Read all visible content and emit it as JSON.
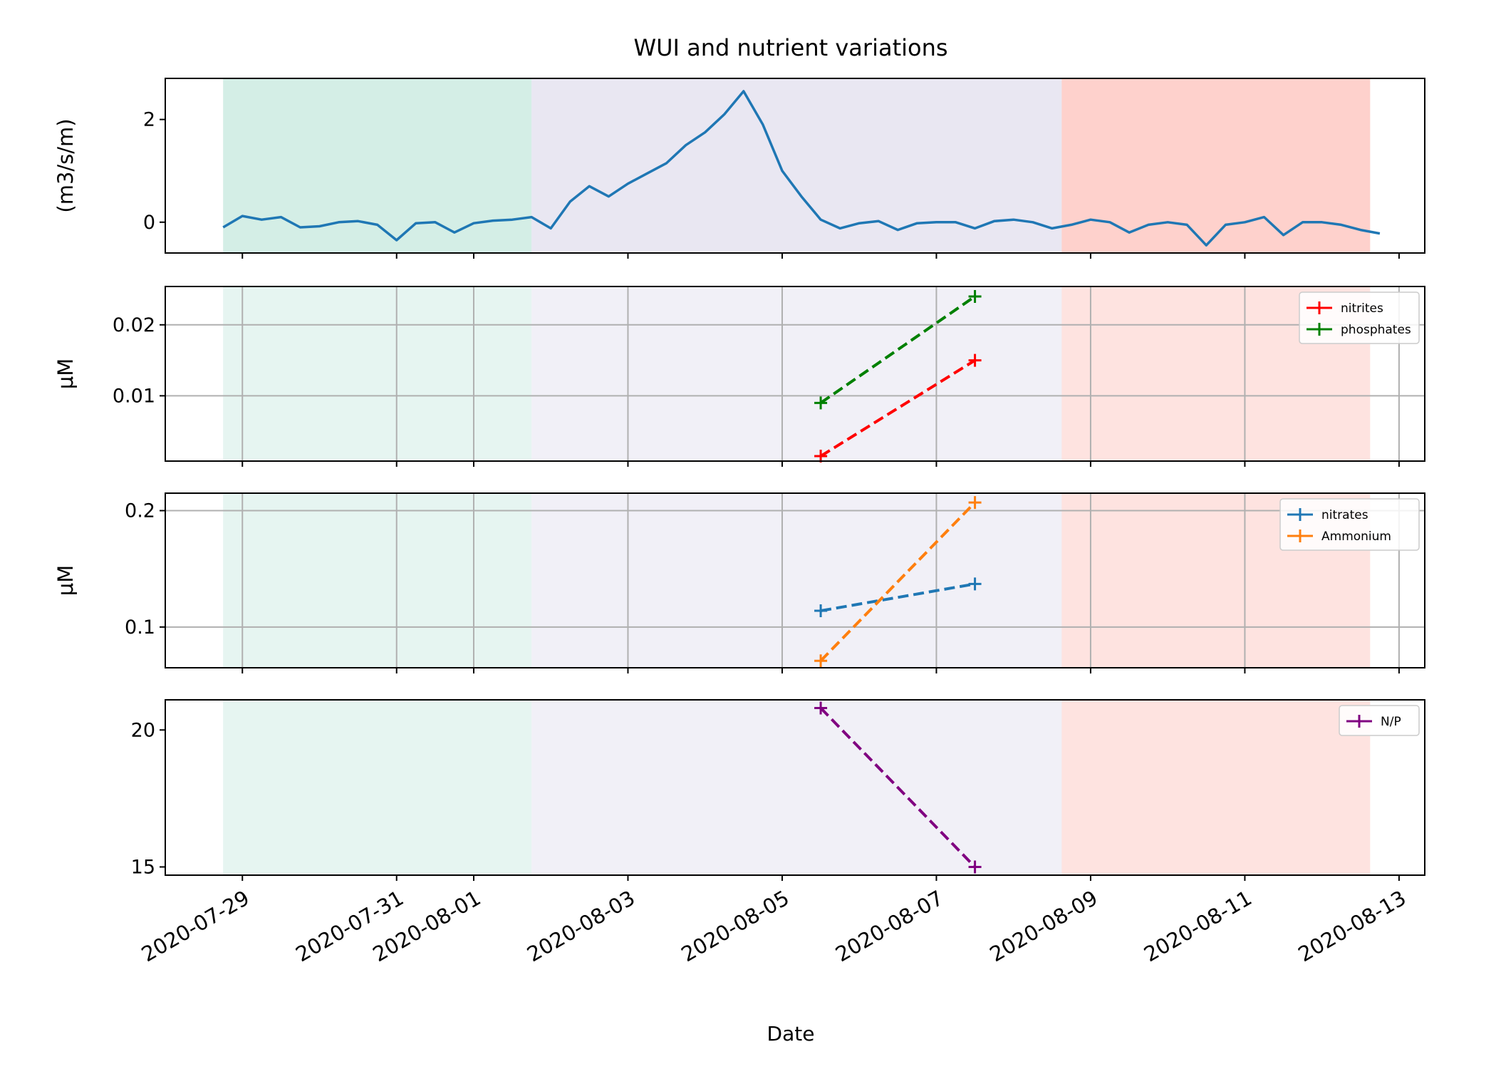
{
  "title": "WUI and nutrient variations",
  "xlabel": "Date",
  "colors": {
    "period1": "#66c2a5",
    "period2": "#bebada",
    "period3": "#fb8072",
    "wui": "#1f77b4",
    "nitrites": "#ff0000",
    "phosphates": "#008000",
    "nitrates": "#1f77b4",
    "ammonium": "#ff7f0e",
    "np": "#800080",
    "grid": "#b0b0b0"
  },
  "chart_data": [
    {
      "type": "line",
      "panel": "wui",
      "ylabel": "(m3/s/m)",
      "ylim": [
        -0.6,
        2.8
      ],
      "yticks": [
        0,
        2
      ],
      "grid": false,
      "shading": [
        {
          "start": "2020-07-28 18:00",
          "end": "2020-08-01 18:00",
          "color": "period1"
        },
        {
          "start": "2020-08-01 18:00",
          "end": "2020-08-08 15:00",
          "color": "period2"
        },
        {
          "start": "2020-08-08 15:00",
          "end": "2020-08-12 15:00",
          "color": "period3"
        }
      ],
      "series": [
        {
          "color": "wui",
          "x": [
            "2020-07-28 18:00",
            "2020-07-29 00:00",
            "2020-07-29 06:00",
            "2020-07-29 12:00",
            "2020-07-29 18:00",
            "2020-07-30 00:00",
            "2020-07-30 06:00",
            "2020-07-30 12:00",
            "2020-07-30 18:00",
            "2020-07-31 00:00",
            "2020-07-31 06:00",
            "2020-07-31 12:00",
            "2020-07-31 18:00",
            "2020-08-01 00:00",
            "2020-08-01 06:00",
            "2020-08-01 12:00",
            "2020-08-01 18:00",
            "2020-08-02 00:00",
            "2020-08-02 06:00",
            "2020-08-02 12:00",
            "2020-08-02 18:00",
            "2020-08-03 00:00",
            "2020-08-03 06:00",
            "2020-08-03 12:00",
            "2020-08-03 18:00",
            "2020-08-04 00:00",
            "2020-08-04 06:00",
            "2020-08-04 12:00",
            "2020-08-04 18:00",
            "2020-08-05 00:00",
            "2020-08-05 06:00",
            "2020-08-05 12:00",
            "2020-08-05 18:00",
            "2020-08-06 00:00",
            "2020-08-06 06:00",
            "2020-08-06 12:00",
            "2020-08-06 18:00",
            "2020-08-07 00:00",
            "2020-08-07 06:00",
            "2020-08-07 12:00",
            "2020-08-07 18:00",
            "2020-08-08 00:00",
            "2020-08-08 06:00",
            "2020-08-08 12:00",
            "2020-08-08 18:00",
            "2020-08-09 00:00",
            "2020-08-09 06:00",
            "2020-08-09 12:00",
            "2020-08-09 18:00",
            "2020-08-10 00:00",
            "2020-08-10 06:00",
            "2020-08-10 12:00",
            "2020-08-10 18:00",
            "2020-08-11 00:00",
            "2020-08-11 06:00",
            "2020-08-11 12:00",
            "2020-08-11 18:00",
            "2020-08-12 00:00",
            "2020-08-12 06:00",
            "2020-08-12 12:00",
            "2020-08-12 18:00"
          ],
          "y": [
            -0.1,
            0.12,
            0.05,
            0.1,
            -0.1,
            -0.08,
            0.0,
            0.02,
            -0.05,
            -0.35,
            -0.02,
            0.0,
            -0.2,
            -0.02,
            0.03,
            0.05,
            0.1,
            -0.12,
            0.4,
            0.7,
            0.5,
            0.75,
            0.95,
            1.15,
            1.5,
            1.75,
            2.1,
            2.55,
            1.9,
            1.0,
            0.5,
            0.05,
            -0.12,
            -0.02,
            0.02,
            -0.15,
            -0.02,
            0.0,
            0.0,
            -0.12,
            0.02,
            0.05,
            0.0,
            -0.12,
            -0.05,
            0.05,
            0.0,
            -0.2,
            -0.05,
            0.0,
            -0.05,
            -0.45,
            -0.05,
            0.0,
            0.1,
            -0.25,
            0.0,
            0.0,
            -0.05,
            -0.15,
            -0.22
          ]
        }
      ]
    },
    {
      "type": "line",
      "panel": "nitrites-phosphates",
      "ylabel": "μM",
      "ylim": [
        0.0008,
        0.0254
      ],
      "yticks": [
        0.01,
        0.02
      ],
      "ytick_labels": [
        "0.01",
        "0.02"
      ],
      "grid": true,
      "legend": "top-right",
      "series": [
        {
          "name": "nitrites",
          "color": "nitrites",
          "x": [
            "2020-08-05 12:00",
            "2020-08-07 12:00"
          ],
          "y": [
            0.0015,
            0.015
          ]
        },
        {
          "name": "phosphates",
          "color": "phosphates",
          "x": [
            "2020-08-05 12:00",
            "2020-08-07 12:00"
          ],
          "y": [
            0.009,
            0.024
          ]
        }
      ]
    },
    {
      "type": "line",
      "panel": "nitrates-ammonium",
      "ylabel": "μM",
      "ylim": [
        0.065,
        0.215
      ],
      "yticks": [
        0.1,
        0.2
      ],
      "ytick_labels": [
        "0.1",
        "0.2"
      ],
      "grid": true,
      "legend": "top-right",
      "series": [
        {
          "name": "nitrates",
          "color": "nitrates",
          "x": [
            "2020-08-05 12:00",
            "2020-08-07 12:00"
          ],
          "y": [
            0.114,
            0.137
          ]
        },
        {
          "name": "Ammonium",
          "color": "ammonium",
          "x": [
            "2020-08-05 12:00",
            "2020-08-07 12:00"
          ],
          "y": [
            0.071,
            0.207
          ]
        }
      ]
    },
    {
      "type": "line",
      "panel": "np",
      "ylabel": "",
      "ylim": [
        14.7,
        21.1
      ],
      "yticks": [
        15,
        20
      ],
      "ytick_labels": [
        "15",
        "20"
      ],
      "grid": false,
      "legend": "top-right",
      "series": [
        {
          "name": "N/P",
          "color": "np",
          "x": [
            "2020-08-05 12:00",
            "2020-08-07 12:00"
          ],
          "y": [
            20.8,
            15.0
          ]
        }
      ]
    }
  ],
  "xlim": [
    "2020-07-28",
    "2020-08-13 08:00"
  ],
  "xticks": [
    "2020-07-29",
    "2020-07-31",
    "2020-08-01",
    "2020-08-03",
    "2020-08-05",
    "2020-08-07",
    "2020-08-09",
    "2020-08-11",
    "2020-08-13"
  ]
}
